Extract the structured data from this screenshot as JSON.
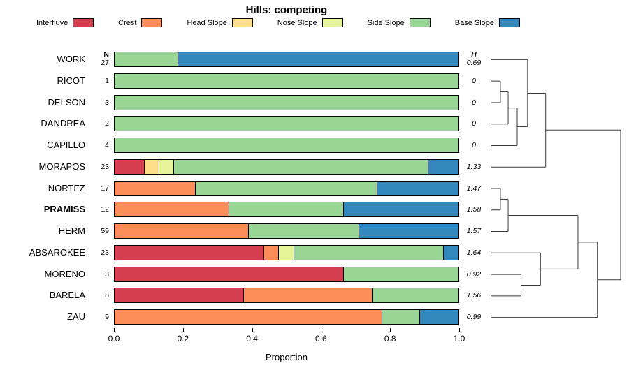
{
  "chart_data": {
    "type": "bar",
    "variant": "horizontal-stacked-proportions-with-dendrogram",
    "title": "Hills: competing",
    "xlabel": "Proportion",
    "xlim": [
      0,
      1
    ],
    "xticks": [
      0.0,
      0.2,
      0.4,
      0.6,
      0.8,
      1.0
    ],
    "n_header": "N",
    "h_header": "H",
    "categories": [
      "Interfluve",
      "Crest",
      "Head Slope",
      "Nose Slope",
      "Side Slope",
      "Base Slope"
    ],
    "colors": [
      "#D53E4F",
      "#FC8D59",
      "#FEE08B",
      "#E6F598",
      "#99D594",
      "#3288BD"
    ],
    "rows": [
      {
        "label": "WORK",
        "n": 27,
        "h": "0.69",
        "bold": false,
        "values": [
          0,
          0,
          0,
          0,
          0.185,
          0.815
        ]
      },
      {
        "label": "RICOT",
        "n": 1,
        "h": "0",
        "bold": false,
        "values": [
          0,
          0,
          0,
          0,
          1,
          0
        ]
      },
      {
        "label": "DELSON",
        "n": 3,
        "h": "0",
        "bold": false,
        "values": [
          0,
          0,
          0,
          0,
          1,
          0
        ]
      },
      {
        "label": "DANDREA",
        "n": 2,
        "h": "0",
        "bold": false,
        "values": [
          0,
          0,
          0,
          0,
          1,
          0
        ]
      },
      {
        "label": "CAPILLO",
        "n": 4,
        "h": "0",
        "bold": false,
        "values": [
          0,
          0,
          0,
          0,
          1,
          0
        ]
      },
      {
        "label": "MORAPOS",
        "n": 23,
        "h": "1.33",
        "bold": false,
        "values": [
          0.087,
          0,
          0.043,
          0.043,
          0.74,
          0.087
        ]
      },
      {
        "label": "NORTEZ",
        "n": 17,
        "h": "1.47",
        "bold": false,
        "values": [
          0,
          0.235,
          0,
          0,
          0.53,
          0.235
        ]
      },
      {
        "label": "PRAMISS",
        "n": 12,
        "h": "1.58",
        "bold": true,
        "values": [
          0,
          0.333,
          0,
          0,
          0.334,
          0.333
        ]
      },
      {
        "label": "HERM",
        "n": 59,
        "h": "1.57",
        "bold": false,
        "values": [
          0,
          0.39,
          0,
          0,
          0.322,
          0.288
        ]
      },
      {
        "label": "ABSAROKEE",
        "n": 23,
        "h": "1.64",
        "bold": false,
        "values": [
          0.435,
          0.043,
          0,
          0.044,
          0.435,
          0.043
        ]
      },
      {
        "label": "MORENO",
        "n": 3,
        "h": "0.92",
        "bold": false,
        "values": [
          0.667,
          0,
          0,
          0,
          0.333,
          0
        ]
      },
      {
        "label": "BARELA",
        "n": 8,
        "h": "1.56",
        "bold": false,
        "values": [
          0.375,
          0.375,
          0,
          0,
          0.25,
          0
        ]
      },
      {
        "label": "ZAU",
        "n": 9,
        "h": "0.99",
        "bold": false,
        "values": [
          0,
          0.778,
          0,
          0,
          0.111,
          0.111
        ]
      }
    ],
    "dendrogram_segments": [
      [
        0,
        1,
        0.07,
        1
      ],
      [
        0,
        2,
        0.07,
        2
      ],
      [
        0.07,
        1,
        0.07,
        2
      ],
      [
        0.07,
        1.5,
        0.13,
        1.5
      ],
      [
        0,
        3,
        0.13,
        3
      ],
      [
        0.13,
        1.5,
        0.13,
        3
      ],
      [
        0.13,
        2.25,
        0.2,
        2.25
      ],
      [
        0,
        4,
        0.2,
        4
      ],
      [
        0.2,
        2.25,
        0.2,
        4
      ],
      [
        0,
        0,
        0.28,
        0
      ],
      [
        0.2,
        3.125,
        0.28,
        3.125
      ],
      [
        0.28,
        0,
        0.28,
        3.125
      ],
      [
        0.28,
        1.5625,
        0.42,
        1.5625
      ],
      [
        0,
        5,
        0.42,
        5
      ],
      [
        0.42,
        1.5625,
        0.42,
        5
      ],
      [
        0,
        6,
        0.07,
        6
      ],
      [
        0,
        7,
        0.07,
        7
      ],
      [
        0.07,
        6,
        0.07,
        7
      ],
      [
        0.07,
        6.5,
        0.13,
        6.5
      ],
      [
        0,
        8,
        0.13,
        8
      ],
      [
        0.13,
        6.5,
        0.13,
        8
      ],
      [
        0,
        10,
        0.23,
        10
      ],
      [
        0,
        11,
        0.23,
        11
      ],
      [
        0.23,
        10,
        0.23,
        11
      ],
      [
        0,
        9,
        0.38,
        9
      ],
      [
        0.23,
        10.5,
        0.38,
        10.5
      ],
      [
        0.38,
        9,
        0.38,
        10.5
      ],
      [
        0.13,
        7.25,
        0.67,
        7.25
      ],
      [
        0.38,
        9.75,
        0.67,
        9.75
      ],
      [
        0.67,
        7.25,
        0.67,
        9.75
      ],
      [
        0.67,
        8.5,
        0.82,
        8.5
      ],
      [
        0,
        12,
        0.82,
        12
      ],
      [
        0.82,
        8.5,
        0.82,
        12
      ],
      [
        0.42,
        3.28,
        1,
        3.28
      ],
      [
        0.82,
        10.25,
        1,
        10.25
      ],
      [
        1,
        3.28,
        1,
        10.25
      ]
    ],
    "dendrogram_color": "#3a3a3a"
  }
}
